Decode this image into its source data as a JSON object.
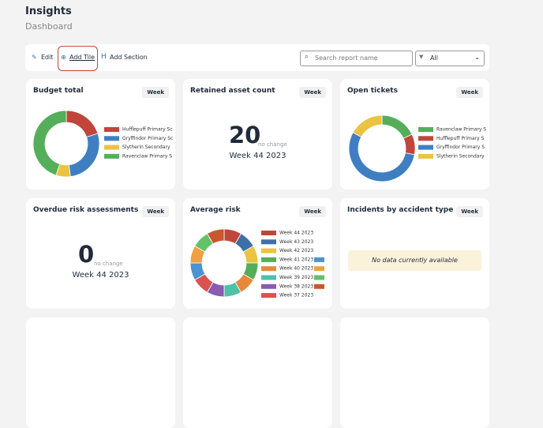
{
  "header": {
    "title": "Insights",
    "subtitle": "Dashboard"
  },
  "toolbar": {
    "edit": "Edit",
    "add_tile": "Add Tile",
    "add_section": "Add Section",
    "search_placeholder": "Search report name",
    "filter": "All"
  },
  "tiles": [
    {
      "title": "Budget total",
      "button": "Week",
      "chart": {
        "type": "donut",
        "series": [
          {
            "name": "Hufflepuff Primary Sc",
            "color": "#c0463b",
            "value": 20
          },
          {
            "name": "Gryffindor Primary Sc",
            "color": "#3f7fc1",
            "value": 28
          },
          {
            "name": "Slytherin Secondary",
            "color": "#eac341",
            "value": 7
          },
          {
            "name": "Ravenclaw Primary S",
            "color": "#55ae5a",
            "value": 45
          }
        ]
      }
    },
    {
      "title": "Retained asset count",
      "button": "Week",
      "kpi": {
        "value": 20,
        "note": "no change",
        "period": "Week 44 2023"
      }
    },
    {
      "title": "Open tickets",
      "button": "Week",
      "chart": {
        "type": "donut",
        "series": [
          {
            "name": "Ravenclaw Primary S",
            "color": "#55ae5a",
            "value": 18
          },
          {
            "name": "Hufflepuff Primary S",
            "color": "#c0463b",
            "value": 10
          },
          {
            "name": "Gryffindor Primary S",
            "color": "#3f7fc1",
            "value": 55
          },
          {
            "name": "Slytherin Secondary",
            "color": "#eac341",
            "value": 17
          }
        ]
      }
    },
    {
      "title": "Overdue risk assessments",
      "button": "Week",
      "kpi": {
        "value": 0,
        "note": "no change",
        "period": "Week 44 2023"
      }
    },
    {
      "title": "Average risk",
      "button": "Week",
      "chart": {
        "type": "donut",
        "series": [
          {
            "name": "Week 44 2023",
            "color": "#c0463b",
            "value": 8
          },
          {
            "name": "Week 43 2023",
            "color": "#3f6fa8",
            "value": 8
          },
          {
            "name": "Week 42 2023",
            "color": "#eac341",
            "value": 8
          },
          {
            "name": "Week 41 2023",
            "color": "#55ae5a",
            "value": 8
          },
          {
            "name": "Week 40 2023",
            "color": "#e5893a",
            "value": 8
          },
          {
            "name": "Week 39 2023",
            "color": "#4fc1a6",
            "value": 8
          },
          {
            "name": "Week 38 2023",
            "color": "#8a5bb0",
            "value": 8
          },
          {
            "name": "Week 37 2023",
            "color": "#d9534f",
            "value": 8
          },
          {
            "name": null,
            "color": "#4b93d1",
            "value": 8
          },
          {
            "name": null,
            "color": "#f0a040",
            "value": 8
          },
          {
            "name": null,
            "color": "#62c26a",
            "value": 8
          },
          {
            "name": null,
            "color": "#c9572d",
            "value": 8
          }
        ]
      }
    },
    {
      "title": "Incidents by accident type",
      "button": "Week",
      "empty": "No data currently available"
    }
  ]
}
